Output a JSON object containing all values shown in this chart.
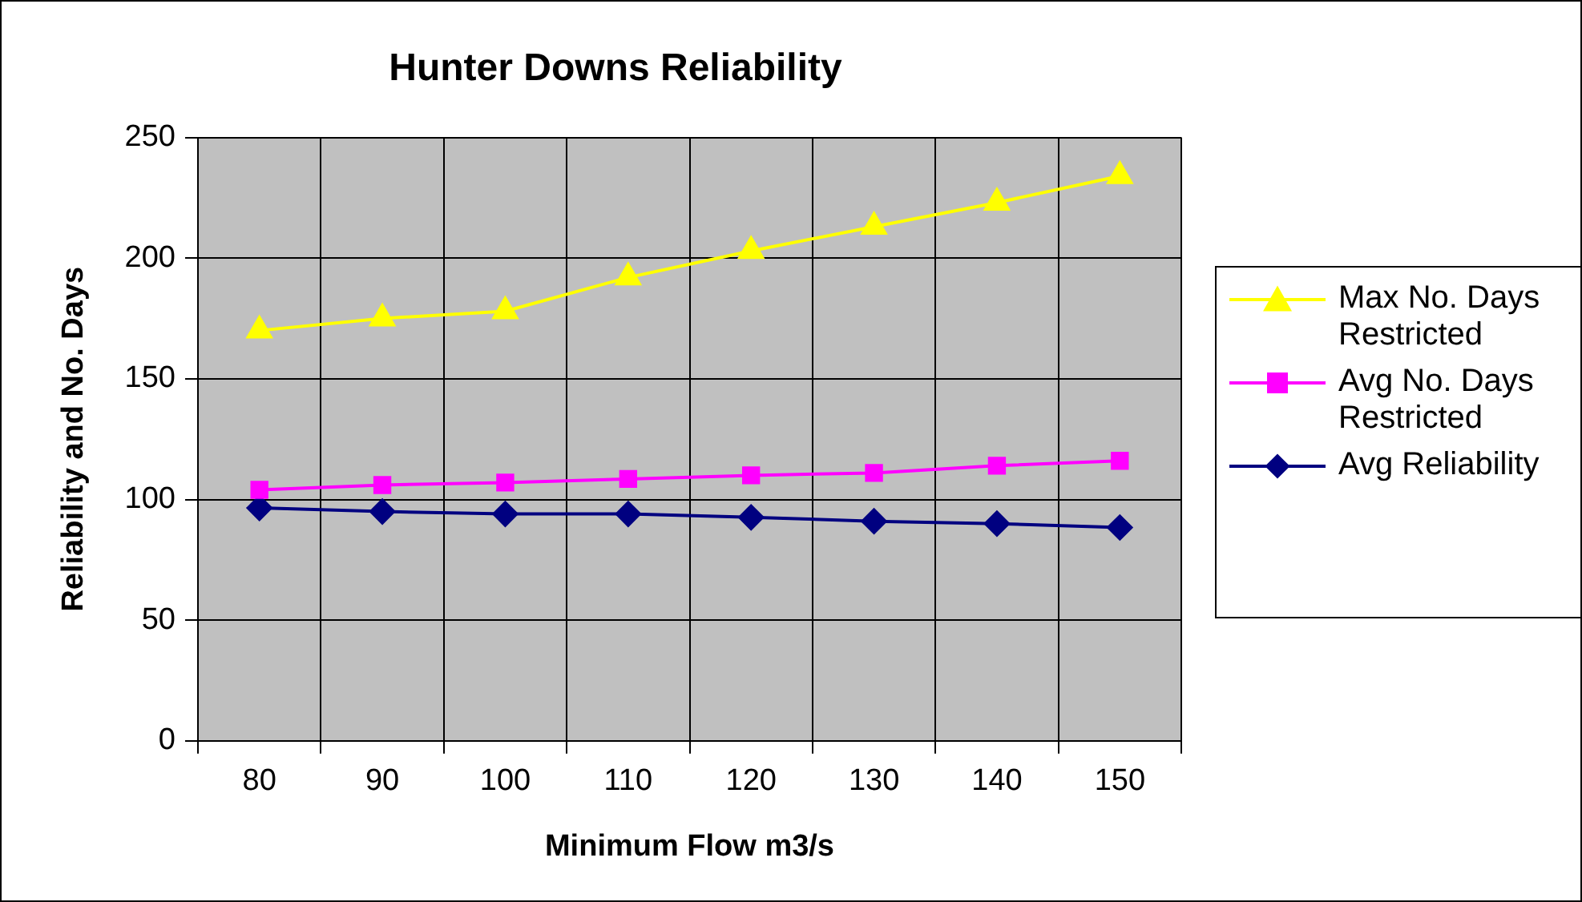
{
  "chart_data": {
    "type": "line",
    "title": "Hunter Downs Reliability",
    "xlabel": "Minimum Flow m3/s",
    "ylabel": "Reliability and No. Days",
    "categories": [
      "80",
      "90",
      "100",
      "110",
      "120",
      "130",
      "140",
      "150"
    ],
    "series": [
      {
        "name": "Max No. Days Restricted",
        "color": "#ffff00",
        "marker": "triangle",
        "values": [
          170,
          175,
          178,
          192,
          203,
          213,
          223,
          234
        ]
      },
      {
        "name": "Avg No. Days Restricted",
        "color": "#ff00ff",
        "marker": "square",
        "values": [
          104,
          106,
          107,
          108.5,
          110,
          111,
          114,
          116
        ]
      },
      {
        "name": "Avg Reliability",
        "color": "#000080",
        "marker": "diamond",
        "values": [
          96.5,
          95,
          94,
          94,
          92.6,
          91,
          90,
          88.4
        ]
      }
    ],
    "ylim": [
      0,
      250
    ],
    "yticks": [
      0,
      50,
      100,
      150,
      200,
      250
    ],
    "grid": true,
    "legend": "right",
    "line_style": "solid"
  }
}
